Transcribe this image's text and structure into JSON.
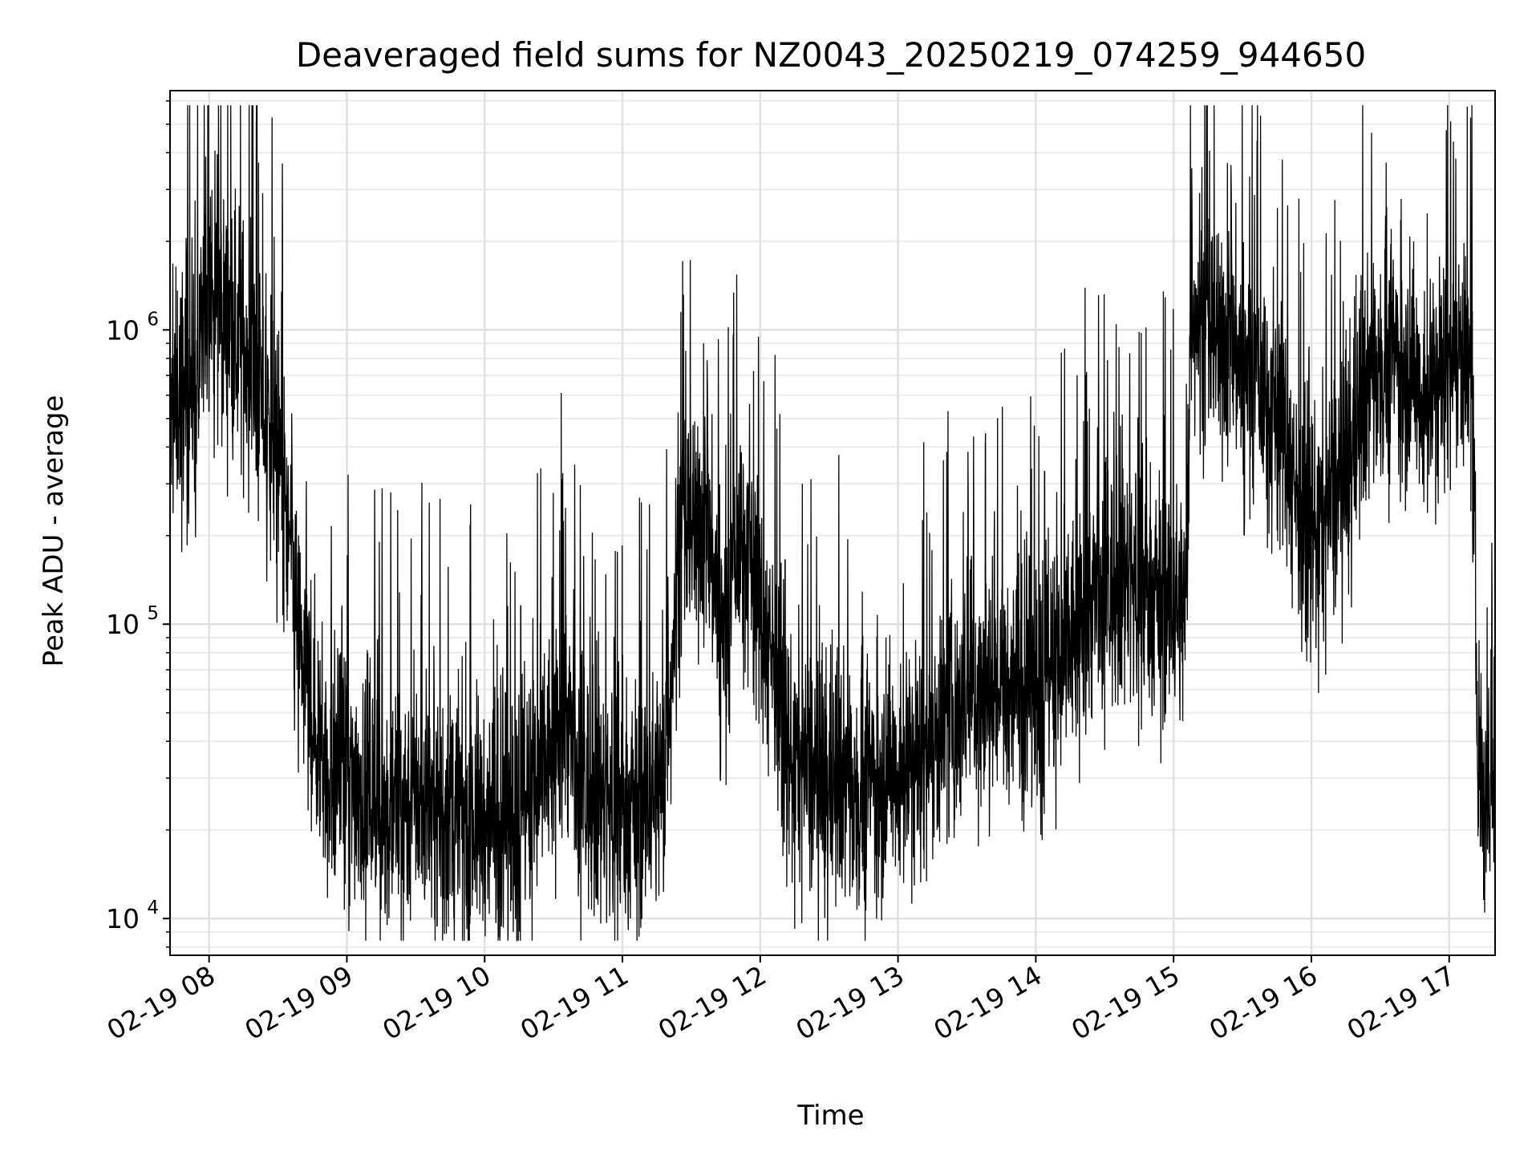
{
  "chart_data": {
    "type": "line",
    "title": "Deaveraged field sums for NZ0043_20250219_074259_944650",
    "xlabel": "Time",
    "ylabel": "Peak ADU - average",
    "yscale": "log",
    "grid": true,
    "xlim": [
      "2025-02-19 07:43",
      "2025-02-19 17:20"
    ],
    "ylim": [
      7500,
      6500000
    ],
    "x_ticks": [
      {
        "value": "2025-02-19 08:00",
        "label": "02-19 08"
      },
      {
        "value": "2025-02-19 09:00",
        "label": "02-19 09"
      },
      {
        "value": "2025-02-19 10:00",
        "label": "02-19 10"
      },
      {
        "value": "2025-02-19 11:00",
        "label": "02-19 11"
      },
      {
        "value": "2025-02-19 12:00",
        "label": "02-19 12"
      },
      {
        "value": "2025-02-19 13:00",
        "label": "02-19 13"
      },
      {
        "value": "2025-02-19 14:00",
        "label": "02-19 14"
      },
      {
        "value": "2025-02-19 15:00",
        "label": "02-19 15"
      },
      {
        "value": "2025-02-19 16:00",
        "label": "02-19 16"
      },
      {
        "value": "2025-02-19 17:00",
        "label": "02-19 17"
      }
    ],
    "y_ticks": [
      {
        "value": 10000,
        "base": "10",
        "exp": "4"
      },
      {
        "value": 100000,
        "base": "10",
        "exp": "5"
      },
      {
        "value": 1000000,
        "base": "10",
        "exp": "6"
      }
    ],
    "series": [
      {
        "color": "#000000",
        "points": [
          [
            "2025-02-19 07:43",
            420000
          ],
          [
            "2025-02-19 07:46",
            600000
          ],
          [
            "2025-02-19 07:50",
            700000
          ],
          [
            "2025-02-19 07:55",
            650000
          ],
          [
            "2025-02-19 08:00",
            1500000
          ],
          [
            "2025-02-19 08:04",
            1200000
          ],
          [
            "2025-02-19 08:10",
            1000000
          ],
          [
            "2025-02-19 08:15",
            900000
          ],
          [
            "2025-02-19 08:20",
            650000
          ],
          [
            "2025-02-19 08:25",
            500000
          ],
          [
            "2025-02-19 08:30",
            380000
          ],
          [
            "2025-02-19 08:35",
            200000
          ],
          [
            "2025-02-19 08:40",
            80000
          ],
          [
            "2025-02-19 08:45",
            50000
          ],
          [
            "2025-02-19 08:50",
            35000
          ],
          [
            "2025-02-19 09:00",
            30000
          ],
          [
            "2025-02-19 09:10",
            28000
          ],
          [
            "2025-02-19 09:20",
            26000
          ],
          [
            "2025-02-19 09:30",
            25000
          ],
          [
            "2025-02-19 09:40",
            24000
          ],
          [
            "2025-02-19 09:50",
            23000
          ],
          [
            "2025-02-19 10:00",
            22000
          ],
          [
            "2025-02-19 10:10",
            22000
          ],
          [
            "2025-02-19 10:20",
            24000
          ],
          [
            "2025-02-19 10:30",
            40000
          ],
          [
            "2025-02-19 10:35",
            55000
          ],
          [
            "2025-02-19 10:40",
            30000
          ],
          [
            "2025-02-19 10:50",
            25000
          ],
          [
            "2025-02-19 11:00",
            24000
          ],
          [
            "2025-02-19 11:10",
            25000
          ],
          [
            "2025-02-19 11:18",
            30000
          ],
          [
            "2025-02-19 11:25",
            200000
          ],
          [
            "2025-02-19 11:35",
            230000
          ],
          [
            "2025-02-19 11:40",
            150000
          ],
          [
            "2025-02-19 11:45",
            90000
          ],
          [
            "2025-02-19 11:50",
            200000
          ],
          [
            "2025-02-19 11:55",
            220000
          ],
          [
            "2025-02-19 12:00",
            110000
          ],
          [
            "2025-02-19 12:08",
            70000
          ],
          [
            "2025-02-19 12:12",
            38000
          ],
          [
            "2025-02-19 12:20",
            32000
          ],
          [
            "2025-02-19 12:30",
            30000
          ],
          [
            "2025-02-19 12:40",
            30000
          ],
          [
            "2025-02-19 12:50",
            31000
          ],
          [
            "2025-02-19 13:00",
            33000
          ],
          [
            "2025-02-19 13:10",
            36000
          ],
          [
            "2025-02-19 13:20",
            45000
          ],
          [
            "2025-02-19 13:30",
            58000
          ],
          [
            "2025-02-19 13:40",
            60000
          ],
          [
            "2025-02-19 13:50",
            62000
          ],
          [
            "2025-02-19 14:00",
            65000
          ],
          [
            "2025-02-19 14:10",
            68000
          ],
          [
            "2025-02-19 14:20",
            110000
          ],
          [
            "2025-02-19 14:30",
            130000
          ],
          [
            "2025-02-19 14:40",
            140000
          ],
          [
            "2025-02-19 14:50",
            130000
          ],
          [
            "2025-02-19 15:00",
            120000
          ],
          [
            "2025-02-19 15:05",
            110000
          ],
          [
            "2025-02-19 15:08",
            1300000
          ],
          [
            "2025-02-19 15:15",
            1000000
          ],
          [
            "2025-02-19 15:25",
            900000
          ],
          [
            "2025-02-19 15:35",
            700000
          ],
          [
            "2025-02-19 15:45",
            600000
          ],
          [
            "2025-02-19 15:55",
            250000
          ],
          [
            "2025-02-19 16:05",
            220000
          ],
          [
            "2025-02-19 16:15",
            350000
          ],
          [
            "2025-02-19 16:20",
            500000
          ],
          [
            "2025-02-19 16:30",
            900000
          ],
          [
            "2025-02-19 16:40",
            800000
          ],
          [
            "2025-02-19 16:50",
            600000
          ],
          [
            "2025-02-19 17:00",
            800000
          ],
          [
            "2025-02-19 17:05",
            900000
          ],
          [
            "2025-02-19 17:10",
            600000
          ],
          [
            "2025-02-19 17:12",
            60000
          ],
          [
            "2025-02-19 17:15",
            25000
          ],
          [
            "2025-02-19 17:20",
            30000
          ]
        ]
      }
    ]
  }
}
